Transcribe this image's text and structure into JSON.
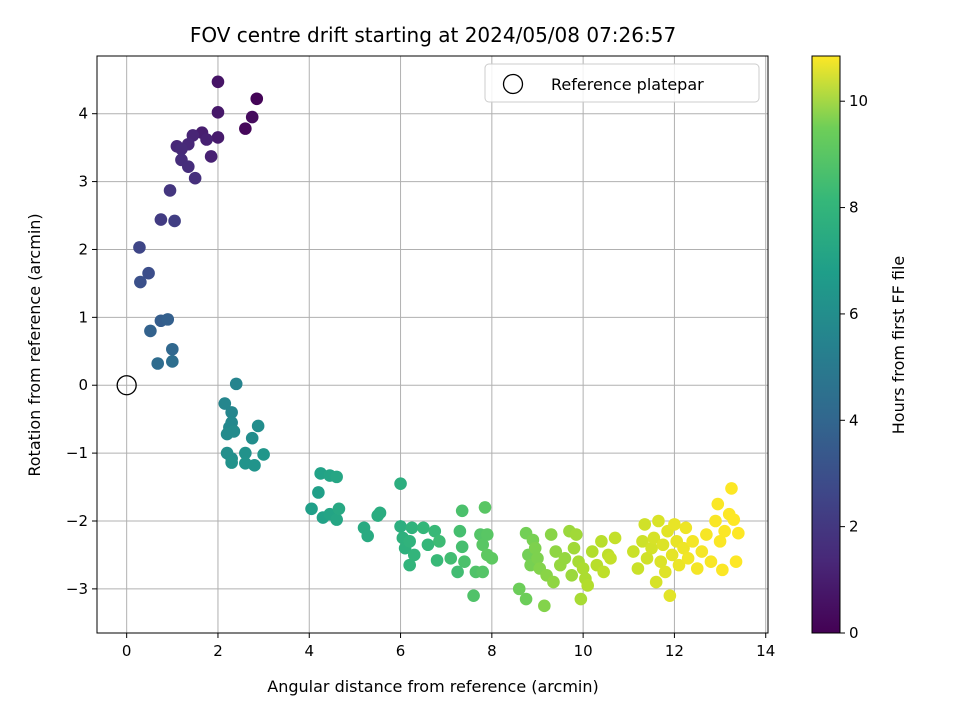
{
  "chart_data": {
    "type": "scatter",
    "title": "FOV centre drift starting at 2024/05/08 07:26:57",
    "xlabel": "Angular distance from reference (arcmin)",
    "ylabel": "Rotation from reference (arcmin)",
    "xlim": [
      -0.65,
      14.05
    ],
    "ylim": [
      -3.65,
      4.85
    ],
    "xticks": [
      0,
      2,
      4,
      6,
      8,
      10,
      12,
      14
    ],
    "yticks": [
      -3,
      -2,
      -1,
      0,
      1,
      2,
      3,
      4
    ],
    "grid": true,
    "legend": {
      "placement": "top-right",
      "entries": [
        "Reference platepar"
      ]
    },
    "reference": {
      "x": 0,
      "y": 0,
      "label": "Reference platepar"
    },
    "colorbar": {
      "label": "Hours from first FF file",
      "colormap": "viridis",
      "range": [
        0,
        10.85
      ],
      "ticks": [
        0,
        2,
        4,
        6,
        8,
        10
      ]
    },
    "points": [
      {
        "x": 2.85,
        "y": 4.22,
        "c": 0.1
      },
      {
        "x": 2.75,
        "y": 3.95,
        "c": 0.3
      },
      {
        "x": 2.6,
        "y": 3.78,
        "c": 0.2
      },
      {
        "x": 2.0,
        "y": 4.47,
        "c": 0.6
      },
      {
        "x": 2.0,
        "y": 4.02,
        "c": 0.7
      },
      {
        "x": 2.0,
        "y": 3.65,
        "c": 0.8
      },
      {
        "x": 1.65,
        "y": 3.72,
        "c": 0.9
      },
      {
        "x": 1.75,
        "y": 3.62,
        "c": 1.0
      },
      {
        "x": 1.85,
        "y": 3.37,
        "c": 1.0
      },
      {
        "x": 1.45,
        "y": 3.68,
        "c": 1.1
      },
      {
        "x": 1.35,
        "y": 3.55,
        "c": 1.2
      },
      {
        "x": 1.1,
        "y": 3.52,
        "c": 1.2
      },
      {
        "x": 1.2,
        "y": 3.48,
        "c": 1.3
      },
      {
        "x": 1.2,
        "y": 3.32,
        "c": 1.4
      },
      {
        "x": 1.35,
        "y": 3.22,
        "c": 1.4
      },
      {
        "x": 1.5,
        "y": 3.05,
        "c": 1.5
      },
      {
        "x": 0.95,
        "y": 2.87,
        "c": 1.7
      },
      {
        "x": 0.75,
        "y": 2.44,
        "c": 1.9
      },
      {
        "x": 1.05,
        "y": 2.42,
        "c": 2.0
      },
      {
        "x": 0.28,
        "y": 2.03,
        "c": 2.3
      },
      {
        "x": 0.48,
        "y": 1.65,
        "c": 2.6
      },
      {
        "x": 0.3,
        "y": 1.52,
        "c": 2.7
      },
      {
        "x": 0.75,
        "y": 0.95,
        "c": 3.2
      },
      {
        "x": 0.9,
        "y": 0.97,
        "c": 3.3
      },
      {
        "x": 0.52,
        "y": 0.8,
        "c": 3.4
      },
      {
        "x": 1.0,
        "y": 0.53,
        "c": 3.6
      },
      {
        "x": 0.68,
        "y": 0.32,
        "c": 3.8
      },
      {
        "x": 1.0,
        "y": 0.35,
        "c": 3.9
      },
      {
        "x": 2.4,
        "y": 0.02,
        "c": 4.9
      },
      {
        "x": 2.15,
        "y": -0.27,
        "c": 5.0
      },
      {
        "x": 2.3,
        "y": -0.4,
        "c": 5.0
      },
      {
        "x": 2.3,
        "y": -0.55,
        "c": 5.1
      },
      {
        "x": 2.25,
        "y": -0.62,
        "c": 5.1
      },
      {
        "x": 2.35,
        "y": -0.68,
        "c": 5.2
      },
      {
        "x": 2.2,
        "y": -0.72,
        "c": 5.2
      },
      {
        "x": 2.88,
        "y": -0.6,
        "c": 5.3
      },
      {
        "x": 2.75,
        "y": -0.78,
        "c": 5.3
      },
      {
        "x": 2.2,
        "y": -1.0,
        "c": 5.4
      },
      {
        "x": 2.3,
        "y": -1.08,
        "c": 5.4
      },
      {
        "x": 2.3,
        "y": -1.14,
        "c": 5.5
      },
      {
        "x": 2.6,
        "y": -1.0,
        "c": 5.5
      },
      {
        "x": 2.6,
        "y": -1.15,
        "c": 5.6
      },
      {
        "x": 2.8,
        "y": -1.18,
        "c": 5.6
      },
      {
        "x": 3.0,
        "y": -1.02,
        "c": 5.7
      },
      {
        "x": 4.05,
        "y": -1.82,
        "c": 6.1
      },
      {
        "x": 4.2,
        "y": -1.58,
        "c": 6.1
      },
      {
        "x": 4.25,
        "y": -1.3,
        "c": 6.2
      },
      {
        "x": 4.3,
        "y": -1.95,
        "c": 6.2
      },
      {
        "x": 4.45,
        "y": -1.9,
        "c": 6.3
      },
      {
        "x": 4.45,
        "y": -1.33,
        "c": 6.3
      },
      {
        "x": 4.6,
        "y": -1.35,
        "c": 6.4
      },
      {
        "x": 4.6,
        "y": -1.98,
        "c": 6.4
      },
      {
        "x": 4.65,
        "y": -1.82,
        "c": 6.5
      },
      {
        "x": 5.2,
        "y": -2.1,
        "c": 6.6
      },
      {
        "x": 5.28,
        "y": -2.22,
        "c": 6.6
      },
      {
        "x": 5.5,
        "y": -1.92,
        "c": 6.7
      },
      {
        "x": 5.55,
        "y": -1.88,
        "c": 6.7
      },
      {
        "x": 6.0,
        "y": -1.45,
        "c": 6.8
      },
      {
        "x": 6.0,
        "y": -2.08,
        "c": 6.8
      },
      {
        "x": 6.05,
        "y": -2.25,
        "c": 6.9
      },
      {
        "x": 6.1,
        "y": -2.4,
        "c": 6.9
      },
      {
        "x": 6.2,
        "y": -2.3,
        "c": 7.0
      },
      {
        "x": 6.25,
        "y": -2.1,
        "c": 7.0
      },
      {
        "x": 6.3,
        "y": -2.5,
        "c": 7.1
      },
      {
        "x": 6.2,
        "y": -2.65,
        "c": 7.1
      },
      {
        "x": 6.5,
        "y": -2.1,
        "c": 7.2
      },
      {
        "x": 6.6,
        "y": -2.35,
        "c": 7.2
      },
      {
        "x": 6.75,
        "y": -2.15,
        "c": 7.3
      },
      {
        "x": 6.8,
        "y": -2.58,
        "c": 7.3
      },
      {
        "x": 6.85,
        "y": -2.3,
        "c": 7.4
      },
      {
        "x": 7.1,
        "y": -2.55,
        "c": 7.5
      },
      {
        "x": 7.25,
        "y": -2.75,
        "c": 7.5
      },
      {
        "x": 7.3,
        "y": -2.15,
        "c": 7.6
      },
      {
        "x": 7.35,
        "y": -2.38,
        "c": 7.6
      },
      {
        "x": 7.35,
        "y": -1.85,
        "c": 7.7
      },
      {
        "x": 7.4,
        "y": -2.6,
        "c": 7.7
      },
      {
        "x": 7.6,
        "y": -3.1,
        "c": 7.8
      },
      {
        "x": 7.65,
        "y": -2.75,
        "c": 7.8
      },
      {
        "x": 7.75,
        "y": -2.2,
        "c": 7.9
      },
      {
        "x": 7.8,
        "y": -2.75,
        "c": 7.9
      },
      {
        "x": 7.8,
        "y": -2.35,
        "c": 8.0
      },
      {
        "x": 7.85,
        "y": -1.8,
        "c": 8.0
      },
      {
        "x": 7.9,
        "y": -2.2,
        "c": 8.0
      },
      {
        "x": 7.9,
        "y": -2.5,
        "c": 8.1
      },
      {
        "x": 8.0,
        "y": -2.55,
        "c": 8.1
      },
      {
        "x": 8.6,
        "y": -3.0,
        "c": 8.4
      },
      {
        "x": 8.75,
        "y": -3.15,
        "c": 8.4
      },
      {
        "x": 8.75,
        "y": -2.18,
        "c": 8.5
      },
      {
        "x": 8.8,
        "y": -2.5,
        "c": 8.5
      },
      {
        "x": 8.85,
        "y": -2.65,
        "c": 8.6
      },
      {
        "x": 8.9,
        "y": -2.28,
        "c": 8.6
      },
      {
        "x": 8.95,
        "y": -2.4,
        "c": 8.7
      },
      {
        "x": 9.0,
        "y": -2.55,
        "c": 8.7
      },
      {
        "x": 9.05,
        "y": -2.7,
        "c": 8.8
      },
      {
        "x": 9.15,
        "y": -3.25,
        "c": 8.8
      },
      {
        "x": 9.2,
        "y": -2.8,
        "c": 8.9
      },
      {
        "x": 9.3,
        "y": -2.2,
        "c": 8.9
      },
      {
        "x": 9.35,
        "y": -2.9,
        "c": 9.0
      },
      {
        "x": 9.4,
        "y": -2.45,
        "c": 9.0
      },
      {
        "x": 9.5,
        "y": -2.65,
        "c": 9.1
      },
      {
        "x": 9.6,
        "y": -2.55,
        "c": 9.1
      },
      {
        "x": 9.7,
        "y": -2.15,
        "c": 9.2
      },
      {
        "x": 9.75,
        "y": -2.8,
        "c": 9.2
      },
      {
        "x": 9.8,
        "y": -2.4,
        "c": 9.3
      },
      {
        "x": 9.85,
        "y": -2.2,
        "c": 9.3
      },
      {
        "x": 9.9,
        "y": -2.6,
        "c": 9.4
      },
      {
        "x": 9.95,
        "y": -3.15,
        "c": 9.4
      },
      {
        "x": 10.0,
        "y": -2.7,
        "c": 9.5
      },
      {
        "x": 10.05,
        "y": -2.85,
        "c": 9.5
      },
      {
        "x": 10.1,
        "y": -2.95,
        "c": 9.6
      },
      {
        "x": 10.2,
        "y": -2.45,
        "c": 9.6
      },
      {
        "x": 10.3,
        "y": -2.65,
        "c": 9.7
      },
      {
        "x": 10.4,
        "y": -2.3,
        "c": 9.7
      },
      {
        "x": 10.45,
        "y": -2.75,
        "c": 9.8
      },
      {
        "x": 10.55,
        "y": -2.5,
        "c": 9.8
      },
      {
        "x": 10.6,
        "y": -2.55,
        "c": 9.9
      },
      {
        "x": 10.7,
        "y": -2.25,
        "c": 9.9
      },
      {
        "x": 11.1,
        "y": -2.45,
        "c": 10.0
      },
      {
        "x": 11.2,
        "y": -2.7,
        "c": 10.0
      },
      {
        "x": 11.3,
        "y": -2.3,
        "c": 10.05
      },
      {
        "x": 11.35,
        "y": -2.05,
        "c": 10.1
      },
      {
        "x": 11.4,
        "y": -2.55,
        "c": 10.1
      },
      {
        "x": 11.5,
        "y": -2.4,
        "c": 10.15
      },
      {
        "x": 11.55,
        "y": -2.25,
        "c": 10.2
      },
      {
        "x": 11.6,
        "y": -2.9,
        "c": 10.2
      },
      {
        "x": 11.65,
        "y": -2.0,
        "c": 10.25
      },
      {
        "x": 11.7,
        "y": -2.6,
        "c": 10.3
      },
      {
        "x": 11.75,
        "y": -2.35,
        "c": 10.3
      },
      {
        "x": 11.8,
        "y": -2.75,
        "c": 10.35
      },
      {
        "x": 11.85,
        "y": -2.15,
        "c": 10.4
      },
      {
        "x": 11.9,
        "y": -3.1,
        "c": 10.4
      },
      {
        "x": 11.95,
        "y": -2.5,
        "c": 10.45
      },
      {
        "x": 12.0,
        "y": -2.05,
        "c": 10.5
      },
      {
        "x": 12.05,
        "y": -2.3,
        "c": 10.5
      },
      {
        "x": 12.1,
        "y": -2.65,
        "c": 10.55
      },
      {
        "x": 12.2,
        "y": -2.4,
        "c": 10.6
      },
      {
        "x": 12.25,
        "y": -2.1,
        "c": 10.6
      },
      {
        "x": 12.3,
        "y": -2.55,
        "c": 10.65
      },
      {
        "x": 12.4,
        "y": -2.3,
        "c": 10.7
      },
      {
        "x": 12.5,
        "y": -2.7,
        "c": 10.7
      },
      {
        "x": 12.6,
        "y": -2.45,
        "c": 10.72
      },
      {
        "x": 12.7,
        "y": -2.2,
        "c": 10.74
      },
      {
        "x": 12.8,
        "y": -2.6,
        "c": 10.76
      },
      {
        "x": 12.9,
        "y": -2.0,
        "c": 10.78
      },
      {
        "x": 12.95,
        "y": -1.75,
        "c": 10.8
      },
      {
        "x": 13.0,
        "y": -2.3,
        "c": 10.8
      },
      {
        "x": 13.05,
        "y": -2.72,
        "c": 10.82
      },
      {
        "x": 13.1,
        "y": -2.15,
        "c": 10.82
      },
      {
        "x": 13.2,
        "y": -1.9,
        "c": 10.84
      },
      {
        "x": 13.25,
        "y": -1.52,
        "c": 10.84
      },
      {
        "x": 13.3,
        "y": -1.98,
        "c": 10.85
      },
      {
        "x": 13.35,
        "y": -2.6,
        "c": 10.85
      },
      {
        "x": 13.4,
        "y": -2.18,
        "c": 10.85
      }
    ]
  }
}
